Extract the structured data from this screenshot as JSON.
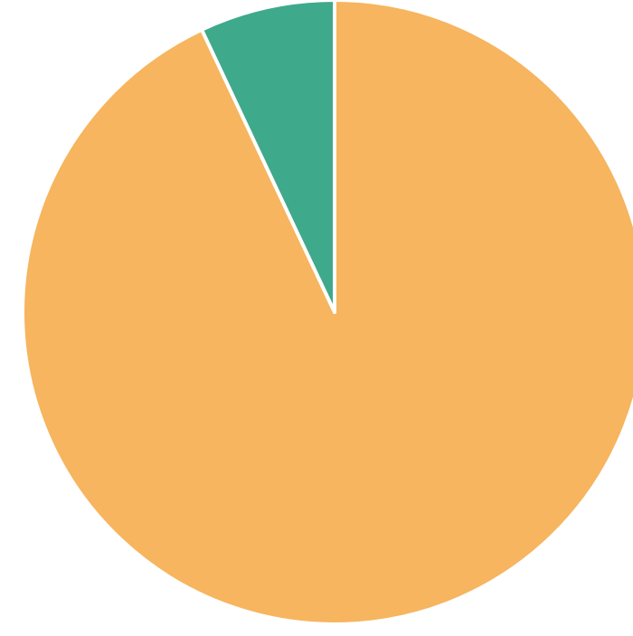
{
  "chart_data": {
    "type": "pie",
    "title": "",
    "slices": [
      {
        "label": "",
        "value": 93,
        "color": "#f6b55e"
      },
      {
        "label": "",
        "value": 7,
        "color": "#3fa98b"
      }
    ],
    "start_angle_degrees": 0,
    "direction": "clockwise",
    "slice_border_color": "#ffffff",
    "legend": "none"
  }
}
